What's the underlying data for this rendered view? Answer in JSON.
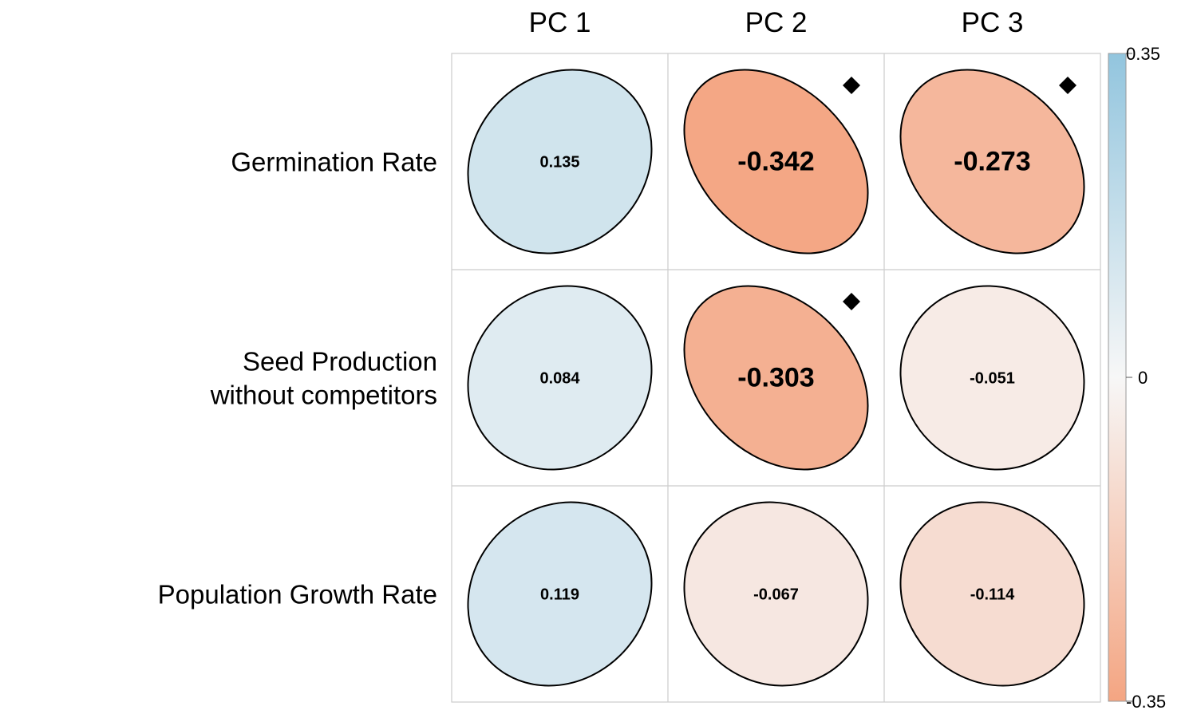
{
  "chart_data": {
    "type": "heatmap",
    "style": "correlation-ellipse-matrix",
    "columns": [
      "PC 1",
      "PC 2",
      "PC 3"
    ],
    "rows": [
      [
        "Germination Rate"
      ],
      [
        "Seed Production",
        "without competitors"
      ],
      [
        "Population Growth Rate"
      ]
    ],
    "values": [
      [
        0.135,
        -0.342,
        -0.273
      ],
      [
        0.084,
        -0.303,
        -0.051
      ],
      [
        0.119,
        -0.067,
        -0.114
      ]
    ],
    "value_labels": [
      [
        "0.135",
        "-0.342",
        "-0.273"
      ],
      [
        "0.084",
        "-0.303",
        "-0.051"
      ],
      [
        "0.119",
        "-0.067",
        "-0.114"
      ]
    ],
    "significant": [
      [
        false,
        true,
        true
      ],
      [
        false,
        true,
        false
      ],
      [
        false,
        false,
        false
      ]
    ],
    "significance_marker": "diamond",
    "color_range": [
      -0.35,
      0.35
    ],
    "colorbar": {
      "ticks": [
        0.35,
        0,
        -0.35
      ],
      "tick_labels": [
        "0.35",
        "0",
        "-0.35"
      ],
      "placement": "right"
    },
    "colors": {
      "positive": "#92c5de",
      "neutral": "#f7f7f7",
      "negative": "#f4a582",
      "grid": "#cccccc",
      "outline": "#000000"
    }
  }
}
